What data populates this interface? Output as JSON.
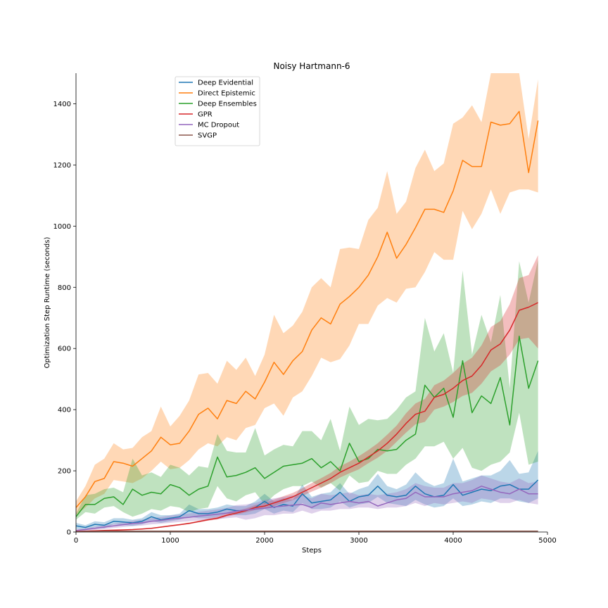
{
  "chart_data": {
    "type": "line",
    "title": "Noisy Hartmann-6",
    "xlabel": "Steps",
    "ylabel": "Optimization Step Runtime (seconds)",
    "xlim": [
      0,
      5000
    ],
    "ylim": [
      0,
      1500
    ],
    "xticks": [
      0,
      1000,
      2000,
      3000,
      4000,
      5000
    ],
    "yticks": [
      0,
      200,
      400,
      600,
      800,
      1000,
      1200,
      1400
    ],
    "grid": false,
    "legend_position": "upper-left",
    "x": [
      0,
      100,
      200,
      300,
      400,
      500,
      600,
      700,
      800,
      900,
      1000,
      1100,
      1200,
      1300,
      1400,
      1500,
      1600,
      1700,
      1800,
      1900,
      2000,
      2100,
      2200,
      2300,
      2400,
      2500,
      2600,
      2700,
      2800,
      2900,
      3000,
      3100,
      3200,
      3300,
      3400,
      3500,
      3600,
      3700,
      3800,
      3900,
      4000,
      4100,
      4200,
      4300,
      4400,
      4500,
      4600,
      4700,
      4800,
      4900
    ],
    "series": [
      {
        "name": "Deep Evidential",
        "color": "#1f77b4",
        "mean": [
          20,
          15,
          25,
          22,
          35,
          33,
          30,
          35,
          50,
          40,
          45,
          50,
          70,
          60,
          60,
          65,
          75,
          70,
          70,
          80,
          100,
          80,
          90,
          85,
          125,
          95,
          100,
          105,
          130,
          100,
          115,
          120,
          150,
          120,
          115,
          120,
          150,
          125,
          115,
          120,
          155,
          120,
          130,
          140,
          135,
          150,
          155,
          140,
          140,
          170
        ],
        "lower": [
          10,
          8,
          15,
          12,
          25,
          22,
          20,
          25,
          35,
          30,
          35,
          40,
          50,
          45,
          45,
          50,
          60,
          55,
          55,
          60,
          75,
          60,
          70,
          65,
          95,
          75,
          75,
          80,
          100,
          80,
          90,
          95,
          115,
          95,
          90,
          85,
          105,
          90,
          80,
          85,
          110,
          85,
          90,
          100,
          95,
          110,
          110,
          100,
          95,
          110
        ],
        "upper": [
          30,
          22,
          35,
          32,
          45,
          45,
          40,
          45,
          65,
          55,
          55,
          60,
          90,
          75,
          75,
          80,
          90,
          85,
          85,
          100,
          125,
          100,
          110,
          105,
          155,
          115,
          125,
          130,
          160,
          125,
          140,
          150,
          190,
          150,
          140,
          155,
          195,
          165,
          150,
          160,
          240,
          165,
          175,
          185,
          185,
          200,
          235,
          190,
          195,
          265
        ]
      },
      {
        "name": "Direct Epistemic",
        "color": "#ff7f0e",
        "mean": [
          80,
          115,
          165,
          175,
          230,
          225,
          215,
          240,
          265,
          310,
          285,
          290,
          330,
          385,
          405,
          370,
          430,
          420,
          460,
          435,
          490,
          555,
          515,
          560,
          590,
          660,
          700,
          680,
          745,
          770,
          800,
          840,
          900,
          980,
          895,
          940,
          995,
          1055,
          1055,
          1045,
          1115,
          1215,
          1195,
          1195,
          1340,
          1330,
          1335,
          1375,
          1175,
          1345
        ],
        "lower": [
          55,
          80,
          110,
          125,
          170,
          165,
          160,
          175,
          200,
          230,
          205,
          210,
          235,
          270,
          290,
          280,
          310,
          300,
          340,
          350,
          405,
          420,
          380,
          440,
          460,
          510,
          570,
          555,
          565,
          610,
          680,
          680,
          740,
          765,
          750,
          795,
          800,
          850,
          915,
          890,
          890,
          1050,
          990,
          1040,
          1120,
          1040,
          1110,
          1120,
          1120,
          1110
        ],
        "upper": [
          100,
          150,
          220,
          240,
          290,
          270,
          275,
          310,
          330,
          410,
          345,
          380,
          430,
          515,
          520,
          485,
          560,
          530,
          570,
          510,
          580,
          710,
          650,
          675,
          720,
          800,
          830,
          800,
          925,
          930,
          925,
          1020,
          1060,
          1180,
          1040,
          1080,
          1190,
          1250,
          1180,
          1205,
          1335,
          1355,
          1395,
          1340,
          1500,
          1500,
          1500,
          1500,
          1285,
          1480
        ]
      },
      {
        "name": "Deep Ensembles",
        "color": "#2ca02c",
        "mean": [
          50,
          90,
          90,
          110,
          115,
          90,
          140,
          120,
          130,
          125,
          155,
          145,
          120,
          140,
          150,
          245,
          180,
          185,
          195,
          210,
          175,
          195,
          215,
          220,
          225,
          240,
          210,
          230,
          200,
          290,
          230,
          240,
          270,
          265,
          270,
          300,
          320,
          480,
          440,
          470,
          375,
          560,
          390,
          445,
          420,
          505,
          350,
          640,
          470,
          560
        ],
        "lower": [
          40,
          65,
          60,
          80,
          85,
          65,
          50,
          60,
          75,
          70,
          85,
          80,
          65,
          75,
          80,
          150,
          110,
          100,
          120,
          130,
          90,
          120,
          140,
          150,
          150,
          165,
          145,
          160,
          135,
          185,
          160,
          165,
          200,
          190,
          190,
          220,
          240,
          280,
          280,
          295,
          240,
          275,
          210,
          200,
          220,
          230,
          260,
          390,
          220,
          230
        ],
        "upper": [
          60,
          120,
          125,
          140,
          145,
          130,
          240,
          185,
          195,
          180,
          220,
          210,
          185,
          215,
          210,
          320,
          265,
          260,
          260,
          340,
          250,
          270,
          285,
          280,
          330,
          330,
          300,
          370,
          265,
          410,
          350,
          370,
          365,
          370,
          400,
          440,
          460,
          700,
          590,
          650,
          520,
          855,
          580,
          710,
          620,
          775,
          470,
          885,
          750,
          890
        ]
      },
      {
        "name": "GPR",
        "color": "#d62728",
        "mean": [
          2,
          3,
          4,
          5,
          6,
          7,
          8,
          10,
          12,
          16,
          20,
          24,
          28,
          34,
          40,
          45,
          55,
          62,
          70,
          80,
          85,
          95,
          105,
          115,
          130,
          145,
          160,
          175,
          195,
          210,
          225,
          245,
          265,
          290,
          320,
          355,
          385,
          395,
          440,
          450,
          470,
          495,
          510,
          545,
          595,
          615,
          660,
          725,
          735,
          750
        ],
        "lower": [
          1,
          2,
          3,
          4,
          5,
          6,
          7,
          9,
          11,
          14,
          18,
          22,
          26,
          31,
          37,
          41,
          50,
          57,
          64,
          72,
          76,
          85,
          95,
          104,
          118,
          132,
          145,
          160,
          178,
          192,
          205,
          225,
          243,
          265,
          295,
          325,
          352,
          360,
          400,
          410,
          425,
          445,
          455,
          485,
          525,
          545,
          580,
          630,
          635,
          600
        ],
        "upper": [
          3,
          4,
          5,
          6,
          7,
          8,
          9,
          11,
          13,
          18,
          22,
          26,
          31,
          37,
          44,
          50,
          61,
          68,
          77,
          88,
          95,
          106,
          117,
          128,
          143,
          160,
          176,
          193,
          215,
          230,
          248,
          268,
          290,
          318,
          348,
          388,
          420,
          435,
          480,
          495,
          520,
          550,
          570,
          610,
          670,
          690,
          745,
          830,
          840,
          905
        ]
      },
      {
        "name": "MC Dropout",
        "color": "#9467bd",
        "mean": [
          5,
          8,
          12,
          16,
          20,
          24,
          28,
          30,
          35,
          38,
          42,
          45,
          48,
          52,
          55,
          58,
          62,
          68,
          72,
          75,
          78,
          82,
          85,
          88,
          90,
          80,
          95,
          90,
          95,
          100,
          95,
          100,
          85,
          95,
          105,
          110,
          130,
          115,
          115,
          115,
          125,
          130,
          135,
          150,
          140,
          130,
          125,
          140,
          125,
          125
        ],
        "lower": [
          2,
          4,
          7,
          10,
          13,
          16,
          19,
          21,
          25,
          27,
          30,
          33,
          35,
          38,
          40,
          42,
          45,
          48,
          40,
          45,
          55,
          55,
          60,
          60,
          70,
          60,
          70,
          70,
          75,
          75,
          80,
          80,
          75,
          80,
          80,
          85,
          95,
          85,
          95,
          90,
          95,
          100,
          95,
          110,
          105,
          95,
          95,
          105,
          95,
          90
        ],
        "upper": [
          8,
          12,
          17,
          22,
          27,
          32,
          37,
          40,
          45,
          49,
          54,
          57,
          61,
          66,
          70,
          74,
          79,
          88,
          90,
          95,
          105,
          110,
          115,
          120,
          120,
          110,
          125,
          120,
          125,
          130,
          120,
          125,
          120,
          125,
          130,
          140,
          160,
          150,
          145,
          145,
          160,
          160,
          170,
          185,
          175,
          165,
          160,
          175,
          160,
          165
        ]
      },
      {
        "name": "SVGP",
        "color": "#8c564b",
        "mean": [
          1,
          2,
          2,
          3,
          3,
          3,
          3,
          3,
          3,
          3,
          3,
          3,
          3,
          3,
          3,
          3,
          3,
          3,
          3,
          3,
          3,
          3,
          3,
          3,
          3,
          3,
          3,
          3,
          3,
          3,
          3,
          3,
          3,
          3,
          3,
          3,
          3,
          3,
          3,
          3,
          3,
          3,
          3,
          3,
          3,
          3,
          3,
          3,
          3,
          3
        ],
        "lower": [
          0,
          1,
          1,
          2,
          2,
          2,
          2,
          2,
          2,
          2,
          2,
          2,
          2,
          2,
          2,
          2,
          2,
          2,
          2,
          2,
          2,
          2,
          2,
          2,
          2,
          2,
          2,
          2,
          2,
          2,
          2,
          2,
          2,
          2,
          2,
          2,
          2,
          2,
          2,
          2,
          2,
          2,
          2,
          2,
          2,
          2,
          2,
          2,
          2,
          2
        ],
        "upper": [
          2,
          3,
          3,
          4,
          4,
          4,
          4,
          4,
          4,
          4,
          4,
          4,
          4,
          4,
          4,
          4,
          4,
          4,
          4,
          4,
          4,
          4,
          4,
          4,
          4,
          4,
          4,
          4,
          4,
          4,
          4,
          4,
          4,
          4,
          4,
          4,
          4,
          4,
          4,
          4,
          4,
          4,
          4,
          4,
          4,
          4,
          4,
          4,
          4,
          4
        ]
      }
    ]
  }
}
